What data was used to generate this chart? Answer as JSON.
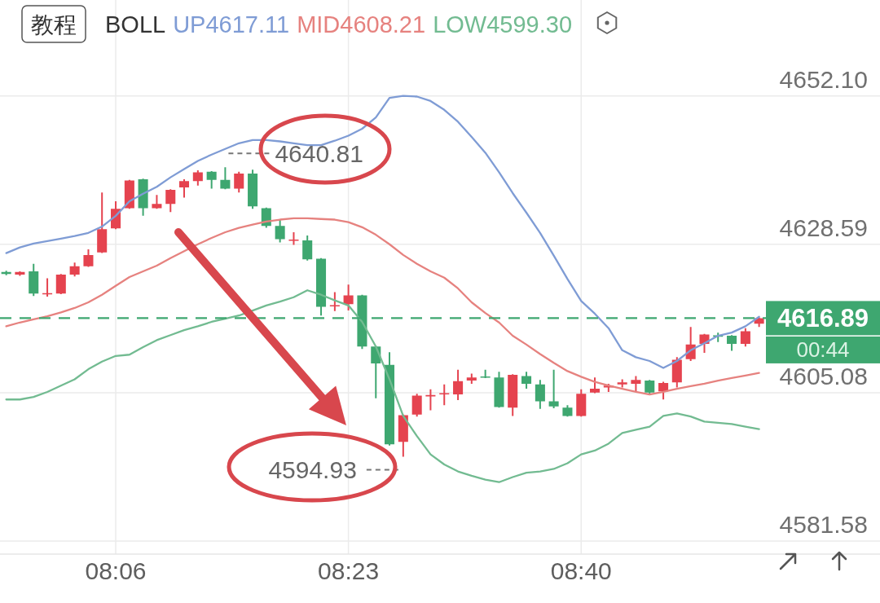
{
  "chart_data": {
    "type": "candlestick",
    "x": [
      7.9667,
      7.9833,
      8.0,
      8.0167,
      8.0333,
      8.05,
      8.0667,
      8.0833,
      8.1,
      8.1167,
      8.1333,
      8.15,
      8.1667,
      8.1833,
      8.2,
      8.2167,
      8.2333,
      8.25,
      8.2667,
      8.2833,
      8.3,
      8.3167,
      8.3333,
      8.35,
      8.3667,
      8.3833,
      8.4,
      8.4167,
      8.4333,
      8.45,
      8.4667,
      8.4833,
      8.5,
      8.5167,
      8.5333,
      8.55,
      8.5667,
      8.5833,
      8.6,
      8.6167,
      8.6333,
      8.65,
      8.6667,
      8.6833,
      8.7,
      8.7167,
      8.7333,
      8.75,
      8.7667,
      8.7833,
      8.8,
      8.8167,
      8.8333,
      8.85,
      8.8667,
      8.8833
    ],
    "ohlc": [
      [
        4624.2,
        4624.4,
        4623.7,
        4623.9
      ],
      [
        4623.8,
        4624.3,
        4623.6,
        4624.2
      ],
      [
        4624.3,
        4625.5,
        4620.4,
        4620.8
      ],
      [
        4620.7,
        4623.2,
        4620.3,
        4620.8
      ],
      [
        4620.8,
        4623.9,
        4620.7,
        4623.8
      ],
      [
        4623.8,
        4625.7,
        4623.5,
        4625.1
      ],
      [
        4625.1,
        4627.8,
        4625.0,
        4626.9
      ],
      [
        4627.3,
        4636.8,
        4627.2,
        4631.0
      ],
      [
        4631.1,
        4635.4,
        4631.0,
        4634.2
      ],
      [
        4634.3,
        4638.8,
        4634.2,
        4638.7
      ],
      [
        4638.9,
        4639.0,
        4633.1,
        4634.3
      ],
      [
        4634.3,
        4636.4,
        4634.2,
        4635.0
      ],
      [
        4635.0,
        4637.3,
        4633.7,
        4637.2
      ],
      [
        4637.6,
        4638.9,
        4636.0,
        4638.6
      ],
      [
        4638.6,
        4640.3,
        4637.9,
        4640.0
      ],
      [
        4640.1,
        4640.2,
        4637.4,
        4638.8
      ],
      [
        4638.8,
        4640.81,
        4637.3,
        4637.4
      ],
      [
        4637.4,
        4640.1,
        4636.8,
        4639.8
      ],
      [
        4639.8,
        4640.4,
        4634.2,
        4634.6
      ],
      [
        4634.3,
        4634.4,
        4631.2,
        4631.5
      ],
      [
        4631.5,
        4632.5,
        4628.9,
        4629.4
      ],
      [
        4629.2,
        4630.5,
        4628.5,
        4629.3
      ],
      [
        4629.2,
        4630.0,
        4626.0,
        4626.2
      ],
      [
        4626.3,
        4626.4,
        4617.3,
        4618.7
      ],
      [
        4618.8,
        4621.0,
        4618.0,
        4618.9
      ],
      [
        4619.1,
        4622.2,
        4618.1,
        4620.5
      ],
      [
        4620.5,
        4620.6,
        4612.0,
        4612.4
      ],
      [
        4612.4,
        4612.5,
        4604.2,
        4609.7
      ],
      [
        4609.5,
        4611.5,
        4596.7,
        4596.9
      ],
      [
        4597.3,
        4601.6,
        4594.93,
        4601.5
      ],
      [
        4601.6,
        4604.9,
        4601.3,
        4604.6
      ],
      [
        4604.5,
        4605.6,
        4602.3,
        4604.7
      ],
      [
        4604.8,
        4606.4,
        4603.1,
        4605.0
      ],
      [
        4604.8,
        4608.7,
        4603.9,
        4606.9
      ],
      [
        4607.0,
        4608.1,
        4606.5,
        4607.5
      ],
      [
        4607.6,
        4608.7,
        4607.4,
        4607.5
      ],
      [
        4607.5,
        4608.4,
        4602.7,
        4602.8
      ],
      [
        4602.7,
        4608.0,
        4601.4,
        4607.9
      ],
      [
        4607.7,
        4608.4,
        4605.7,
        4606.5
      ],
      [
        4606.4,
        4607.1,
        4602.5,
        4603.7
      ],
      [
        4603.7,
        4608.7,
        4602.6,
        4602.9
      ],
      [
        4602.7,
        4603.1,
        4601.3,
        4601.4
      ],
      [
        4601.4,
        4605.6,
        4601.3,
        4604.9
      ],
      [
        4605.1,
        4607.5,
        4605.0,
        4605.7
      ],
      [
        4605.9,
        4606.5,
        4605.2,
        4606.2
      ],
      [
        4606.4,
        4607.2,
        4605.9,
        4606.7
      ],
      [
        4606.5,
        4607.7,
        4605.3,
        4607.1
      ],
      [
        4607.0,
        4607.1,
        4604.9,
        4605.1
      ],
      [
        4605.3,
        4606.8,
        4604.0,
        4606.6
      ],
      [
        4606.7,
        4610.7,
        4605.9,
        4610.3
      ],
      [
        4610.4,
        4615.5,
        4610.1,
        4612.7
      ],
      [
        4612.8,
        4614.4,
        4611.4,
        4614.3
      ],
      [
        4614.1,
        4614.6,
        4613.1,
        4614.0
      ],
      [
        4614.1,
        4614.2,
        4611.7,
        4612.8
      ],
      [
        4612.8,
        4615.3,
        4612.4,
        4614.8
      ],
      [
        4616.0,
        4617.0,
        4615.5,
        4616.89
      ]
    ],
    "colors": [
      "#3ea770",
      "#e5434f",
      "#3ea770",
      "#e5434f",
      "#e5434f",
      "#e5434f",
      "#e5434f",
      "#e5434f",
      "#e5434f",
      "#e5434f",
      "#3ea770",
      "#e5434f",
      "#e5434f",
      "#e5434f",
      "#e5434f",
      "#3ea770",
      "#3ea770",
      "#e5434f",
      "#3ea770",
      "#3ea770",
      "#3ea770",
      "#e5434f",
      "#3ea770",
      "#3ea770",
      "#e5434f",
      "#e5434f",
      "#3ea770",
      "#3ea770",
      "#3ea770",
      "#e5434f",
      "#e5434f",
      "#e5434f",
      "#e5434f",
      "#e5434f",
      "#e5434f",
      "#3ea770",
      "#3ea770",
      "#e5434f",
      "#3ea770",
      "#3ea770",
      "#3ea770",
      "#3ea770",
      "#e5434f",
      "#e5434f",
      "#e5434f",
      "#e5434f",
      "#e5434f",
      "#3ea770",
      "#e5434f",
      "#e5434f",
      "#e5434f",
      "#e5434f",
      "#3ea770",
      "#3ea770",
      "#e5434f",
      "#e5434f"
    ],
    "series": [
      {
        "name": "UP4617.11",
        "type": "line",
        "color": "#7f9cd5",
        "values": [
          4627.2,
          4628.1,
          4628.7,
          4629.1,
          4629.5,
          4629.9,
          4630.4,
          4631.4,
          4633.1,
          4635.4,
          4636.6,
          4637.7,
          4639.2,
          4640.5,
          4641.8,
          4642.8,
          4643.7,
          4644.6,
          4645.1,
          4645.1,
          4644.9,
          4644.6,
          4644.3,
          4644.3,
          4645.0,
          4645.8,
          4646.9,
          4648.7,
          4651.8,
          4652.1,
          4652.0,
          4651.3,
          4649.9,
          4648.0,
          4645.6,
          4643.1,
          4640.0,
          4636.7,
          4633.6,
          4630.4,
          4626.8,
          4623.1,
          4619.6,
          4617.6,
          4615.3,
          4611.8,
          4610.7,
          4610.1,
          4609.0,
          4610.1,
          4611.8,
          4612.9,
          4614.1,
          4614.6,
          4615.6,
          4617.11
        ]
      },
      {
        "name": "MID4608.21",
        "type": "line",
        "color": "#e6827f",
        "values": [
          4615.6,
          4616.2,
          4616.7,
          4617.2,
          4617.8,
          4618.5,
          4619.4,
          4620.6,
          4622.0,
          4623.4,
          4624.3,
          4625.2,
          4626.4,
          4627.5,
          4628.6,
          4629.6,
          4630.5,
          4631.2,
          4631.7,
          4632.2,
          4632.5,
          4632.7,
          4632.7,
          4632.6,
          4632.5,
          4632.1,
          4631.3,
          4630.1,
          4628.6,
          4626.9,
          4625.5,
          4624.3,
          4623.3,
          4621.6,
          4619.4,
          4617.7,
          4616.2,
          4614.1,
          4612.7,
          4611.2,
          4609.8,
          4608.5,
          4607.6,
          4606.8,
          4606.2,
          4605.7,
          4605.2,
          4604.8,
          4605.2,
          4605.7,
          4606.1,
          4606.5,
          4607.0,
          4607.4,
          4607.8,
          4608.21
        ]
      },
      {
        "name": "LOW4599.30",
        "type": "line",
        "color": "#72bb91",
        "values": [
          4604.0,
          4604.0,
          4604.4,
          4605.2,
          4606.2,
          4607.2,
          4608.8,
          4610.0,
          4610.9,
          4611.1,
          4612.3,
          4613.4,
          4614.2,
          4615.0,
          4615.6,
          4616.3,
          4616.8,
          4617.3,
          4618.1,
          4618.9,
          4619.5,
          4620.2,
          4621.3,
          4620.6,
          4619.7,
          4618.9,
          4616.3,
          4612.4,
          4607.2,
          4601.4,
          4598.2,
          4595.3,
          4593.7,
          4592.6,
          4591.9,
          4591.3,
          4590.9,
          4591.7,
          4592.4,
          4592.6,
          4593.0,
          4593.9,
          4595.3,
          4595.9,
          4597.0,
          4598.7,
          4599.2,
          4599.7,
          4601.4,
          4601.8,
          4601.3,
          4600.5,
          4600.3,
          4600.1,
          4599.7,
          4599.3
        ]
      }
    ],
    "legend_title": "BOLL",
    "legend": "top",
    "xlim": [
      7.9591,
      9.0305
    ],
    "xticks": [
      {
        "value": 8.1,
        "label": "08:06"
      },
      {
        "value": 8.3833,
        "label": "08:23"
      },
      {
        "value": 8.6667,
        "label": "08:40"
      }
    ],
    "ylim": [
      4579.5,
      4667.3
    ],
    "yticks": [
      4581.58,
      4605.08,
      4628.59,
      {
        "value": 4652.1,
        "label": "4652.10"
      }
    ],
    "grid": true,
    "ref_lines": [
      {
        "axis": "y",
        "value": 4616.89,
        "label": "4616.89",
        "color": "#3ea770",
        "line_style": "dashed"
      }
    ],
    "annotations": [
      "教程",
      "00:44",
      {
        "text": "4640.81",
        "x": 8.2333,
        "y": 4640.81
      },
      {
        "text": "4594.93",
        "x": 8.45,
        "y": 4594.93
      }
    ]
  }
}
